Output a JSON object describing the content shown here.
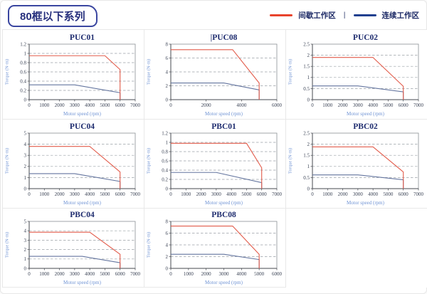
{
  "header": {
    "badge": "80框以下系列",
    "legend": {
      "items": [
        {
          "key": "intermittent",
          "label": "间歇工作区",
          "color": "#e8432c"
        },
        {
          "key": "continuous",
          "label": "连续工作区",
          "color": "#21408f"
        }
      ],
      "separator": "|"
    }
  },
  "chart_data": [
    {
      "type": "line",
      "title": "PUC01",
      "xlabel": "Motor speed (rpm)",
      "ylabel": "Torque (N·m)",
      "xlim": [
        0,
        7000
      ],
      "xticks": [
        0,
        1000,
        2000,
        3000,
        4000,
        5000,
        6000,
        7000
      ],
      "ylim": [
        0,
        1.2
      ],
      "yticks": [
        0,
        0.2,
        0.4,
        0.6,
        0.8,
        1,
        1.2
      ],
      "grid": "horizontal-dashed",
      "legend_position": "none",
      "series": [
        {
          "name": "间歇工作区",
          "key": "intermittent",
          "color": "#e25b4a",
          "points": [
            [
              0,
              0.95
            ],
            [
              5000,
              0.95
            ],
            [
              6000,
              0.65
            ],
            [
              6000,
              0
            ]
          ]
        },
        {
          "name": "连续工作区",
          "key": "continuous",
          "color": "#64759f",
          "points": [
            [
              0,
              0.32
            ],
            [
              3000,
              0.32
            ],
            [
              6000,
              0.15
            ],
            [
              6000,
              0
            ]
          ]
        }
      ]
    },
    {
      "type": "line",
      "title": "PUC08",
      "title_prefix": "|",
      "xlabel": "Motor speed (rpm)",
      "ylabel": "Torque (N·m)",
      "xlim": [
        0,
        6000
      ],
      "xticks": [
        0,
        2000,
        4000,
        6000
      ],
      "ylim": [
        0,
        8
      ],
      "yticks": [
        0,
        2,
        4,
        6,
        8
      ],
      "grid": "horizontal-dashed",
      "legend_position": "none",
      "series": [
        {
          "name": "间歇工作区",
          "key": "intermittent",
          "color": "#e25b4a",
          "points": [
            [
              0,
              7.2
            ],
            [
              3500,
              7.2
            ],
            [
              5000,
              2.4
            ],
            [
              5000,
              0
            ]
          ]
        },
        {
          "name": "连续工作区",
          "key": "continuous",
          "color": "#64759f",
          "points": [
            [
              0,
              2.4
            ],
            [
              3000,
              2.4
            ],
            [
              5000,
              1.4
            ],
            [
              5000,
              0
            ]
          ]
        }
      ]
    },
    {
      "type": "line",
      "title": "PUC02",
      "xlabel": "Motor speed (rpm)",
      "ylabel": "Torque (N·m)",
      "xlim": [
        0,
        7000
      ],
      "xticks": [
        0,
        1000,
        2000,
        3000,
        4000,
        5000,
        6000,
        7000
      ],
      "ylim": [
        0,
        2.5
      ],
      "yticks": [
        0,
        0.5,
        1,
        1.5,
        2,
        2.5
      ],
      "grid": "horizontal-dashed",
      "legend_position": "none",
      "series": [
        {
          "name": "间歇工作区",
          "key": "intermittent",
          "color": "#e25b4a",
          "points": [
            [
              0,
              1.9
            ],
            [
              4000,
              1.9
            ],
            [
              6000,
              0.6
            ],
            [
              6000,
              0
            ]
          ]
        },
        {
          "name": "连续工作区",
          "key": "continuous",
          "color": "#64759f",
          "points": [
            [
              0,
              0.62
            ],
            [
              3000,
              0.62
            ],
            [
              6000,
              0.35
            ],
            [
              6000,
              0
            ]
          ]
        }
      ]
    },
    {
      "type": "line",
      "title": "PUC04",
      "xlabel": "Motor speed (rpm)",
      "ylabel": "Torque (N·m)",
      "xlim": [
        0,
        7000
      ],
      "xticks": [
        0,
        1000,
        2000,
        3000,
        4000,
        5000,
        6000,
        7000
      ],
      "ylim": [
        0,
        5
      ],
      "yticks": [
        0,
        1,
        2,
        3,
        4,
        5
      ],
      "grid": "horizontal-dashed",
      "legend_position": "none",
      "series": [
        {
          "name": "间歇工作区",
          "key": "intermittent",
          "color": "#e25b4a",
          "points": [
            [
              0,
              3.8
            ],
            [
              4000,
              3.8
            ],
            [
              6000,
              1.5
            ],
            [
              6000,
              0
            ]
          ]
        },
        {
          "name": "连续工作区",
          "key": "continuous",
          "color": "#64759f",
          "points": [
            [
              0,
              1.35
            ],
            [
              3000,
              1.35
            ],
            [
              6000,
              0.65
            ],
            [
              6000,
              0
            ]
          ]
        }
      ]
    },
    {
      "type": "line",
      "title": "PBC01",
      "xlabel": "Motor speed (rpm)",
      "ylabel": "Torque (N·m)",
      "xlim": [
        0,
        7000
      ],
      "xticks": [
        0,
        1000,
        2000,
        3000,
        4000,
        5000,
        6000,
        7000
      ],
      "ylim": [
        0,
        1.2
      ],
      "yticks": [
        0,
        0.2,
        0.4,
        0.6,
        0.8,
        1,
        1.2
      ],
      "grid": "horizontal-dashed",
      "legend_position": "none",
      "series": [
        {
          "name": "间歇工作区",
          "key": "intermittent",
          "color": "#e25b4a",
          "points": [
            [
              0,
              0.98
            ],
            [
              5000,
              0.98
            ],
            [
              6000,
              0.45
            ],
            [
              6000,
              0
            ]
          ]
        },
        {
          "name": "连续工作区",
          "key": "continuous",
          "color": "#64759f",
          "points": [
            [
              0,
              0.35
            ],
            [
              3000,
              0.35
            ],
            [
              6000,
              0.13
            ],
            [
              6000,
              0
            ]
          ]
        }
      ]
    },
    {
      "type": "line",
      "title": "PBC02",
      "xlabel": "Motor speed (rpm)",
      "ylabel": "Torque (N·m)",
      "xlim": [
        0,
        7000
      ],
      "xticks": [
        0,
        1000,
        2000,
        3000,
        4000,
        5000,
        6000,
        7000
      ],
      "ylim": [
        0,
        2.5
      ],
      "yticks": [
        0,
        0.5,
        1,
        1.5,
        2,
        2.5
      ],
      "grid": "horizontal-dashed",
      "legend_position": "none",
      "series": [
        {
          "name": "间歇工作区",
          "key": "intermittent",
          "color": "#e25b4a",
          "points": [
            [
              0,
              1.88
            ],
            [
              4000,
              1.88
            ],
            [
              6000,
              0.75
            ],
            [
              6000,
              0
            ]
          ]
        },
        {
          "name": "连续工作区",
          "key": "continuous",
          "color": "#64759f",
          "points": [
            [
              0,
              0.62
            ],
            [
              3000,
              0.62
            ],
            [
              6000,
              0.4
            ],
            [
              6000,
              0
            ]
          ]
        }
      ]
    },
    {
      "type": "line",
      "title": "PBC04",
      "xlabel": "Motor speed (rpm)",
      "ylabel": "Torque (N·m)",
      "xlim": [
        0,
        7000
      ],
      "xticks": [
        0,
        1000,
        2000,
        3000,
        4000,
        5000,
        6000,
        7000
      ],
      "ylim": [
        0,
        5
      ],
      "yticks": [
        0,
        1,
        2,
        3,
        4,
        5
      ],
      "grid": "horizontal-dashed",
      "legend_position": "none",
      "series": [
        {
          "name": "间歇工作区",
          "key": "intermittent",
          "color": "#e25b4a",
          "points": [
            [
              0,
              3.85
            ],
            [
              4000,
              3.85
            ],
            [
              6000,
              1.5
            ],
            [
              6000,
              0
            ]
          ]
        },
        {
          "name": "连续工作区",
          "key": "continuous",
          "color": "#64759f",
          "points": [
            [
              0,
              1.28
            ],
            [
              3500,
              1.28
            ],
            [
              6000,
              0.6
            ],
            [
              6000,
              0
            ]
          ]
        }
      ]
    },
    {
      "type": "line",
      "title": "PBC08",
      "xlabel": "Motor speed (rpm)",
      "ylabel": "Torque (N·m)",
      "xlim": [
        0,
        6000
      ],
      "xticks": [
        0,
        1000,
        2000,
        3000,
        4000,
        5000,
        6000
      ],
      "ylim": [
        0,
        8
      ],
      "yticks": [
        0,
        2,
        4,
        6,
        8
      ],
      "grid": "horizontal-dashed",
      "legend_position": "none",
      "series": [
        {
          "name": "间歇工作区",
          "key": "intermittent",
          "color": "#e25b4a",
          "points": [
            [
              0,
              7.2
            ],
            [
              3500,
              7.2
            ],
            [
              5000,
              2.4
            ],
            [
              5000,
              0
            ]
          ]
        },
        {
          "name": "连续工作区",
          "key": "continuous",
          "color": "#64759f",
          "points": [
            [
              0,
              2.4
            ],
            [
              3000,
              2.4
            ],
            [
              5000,
              1.5
            ],
            [
              5000,
              0
            ]
          ]
        }
      ]
    }
  ]
}
